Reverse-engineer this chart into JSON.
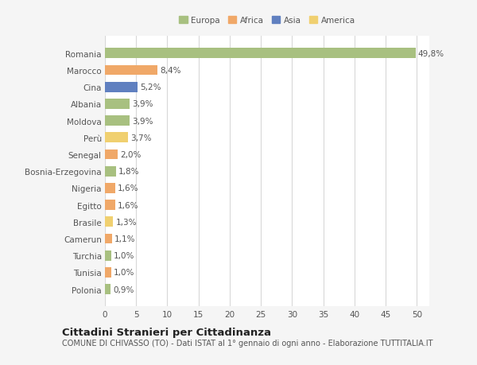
{
  "categories": [
    "Polonia",
    "Tunisia",
    "Turchia",
    "Camerun",
    "Brasile",
    "Egitto",
    "Nigeria",
    "Bosnia-Erzegovina",
    "Senegal",
    "Perù",
    "Moldova",
    "Albania",
    "Cina",
    "Marocco",
    "Romania"
  ],
  "values": [
    0.9,
    1.0,
    1.0,
    1.1,
    1.3,
    1.6,
    1.6,
    1.8,
    2.0,
    3.7,
    3.9,
    3.9,
    5.2,
    8.4,
    49.8
  ],
  "labels": [
    "0,9%",
    "1,0%",
    "1,0%",
    "1,1%",
    "1,3%",
    "1,6%",
    "1,6%",
    "1,8%",
    "2,0%",
    "3,7%",
    "3,9%",
    "3,9%",
    "5,2%",
    "8,4%",
    "49,8%"
  ],
  "colors": [
    "#a8c080",
    "#f0a868",
    "#a8c080",
    "#f0a868",
    "#f0d070",
    "#f0a868",
    "#f0a868",
    "#a8c080",
    "#f0a868",
    "#f0d070",
    "#a8c080",
    "#a8c080",
    "#6080c0",
    "#f0a868",
    "#a8c080"
  ],
  "legend_labels": [
    "Europa",
    "Africa",
    "Asia",
    "America"
  ],
  "legend_colors": [
    "#a8c080",
    "#f0a868",
    "#6080c0",
    "#f0d070"
  ],
  "title": "Cittadini Stranieri per Cittadinanza",
  "subtitle": "COMUNE DI CHIVASSO (TO) - Dati ISTAT al 1° gennaio di ogni anno - Elaborazione TUTTITALIA.IT",
  "xlim": [
    0,
    52
  ],
  "xticks": [
    0,
    5,
    10,
    15,
    20,
    25,
    30,
    35,
    40,
    45,
    50
  ],
  "bg_color": "#f5f5f5",
  "bar_bg": "#ffffff",
  "grid_color": "#d8d8d8",
  "text_color": "#555555",
  "label_fontsize": 7.5,
  "tick_fontsize": 7.5,
  "title_fontsize": 9.5,
  "subtitle_fontsize": 7.0
}
